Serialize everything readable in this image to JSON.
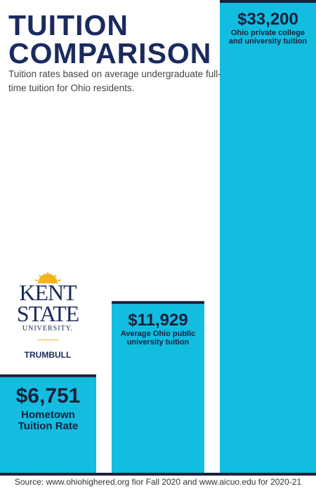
{
  "title": "TUITION COMPARISON",
  "subtitle": "Tuition rates based on average undergraduate full-time tuition for Ohio residents.",
  "logo": {
    "lines": [
      "KENT",
      "STATE",
      "UNIVERSITY."
    ],
    "campus": "TRUMBULL"
  },
  "source": "Source: www.ohiohighered.org fior Fall 2020 and www.aicuo.edu for 2020-21",
  "chart_data": {
    "type": "bar",
    "categories": [
      "Hometown Tuition Rate",
      "Average Ohio public university tuition",
      "Ohio private college and university tuition"
    ],
    "values": [
      6751,
      11929,
      33200
    ],
    "value_labels": [
      "$6,751",
      "$11,929",
      "$33,200"
    ],
    "color": "#12bde0",
    "cap_color": "#1b1f3b"
  }
}
